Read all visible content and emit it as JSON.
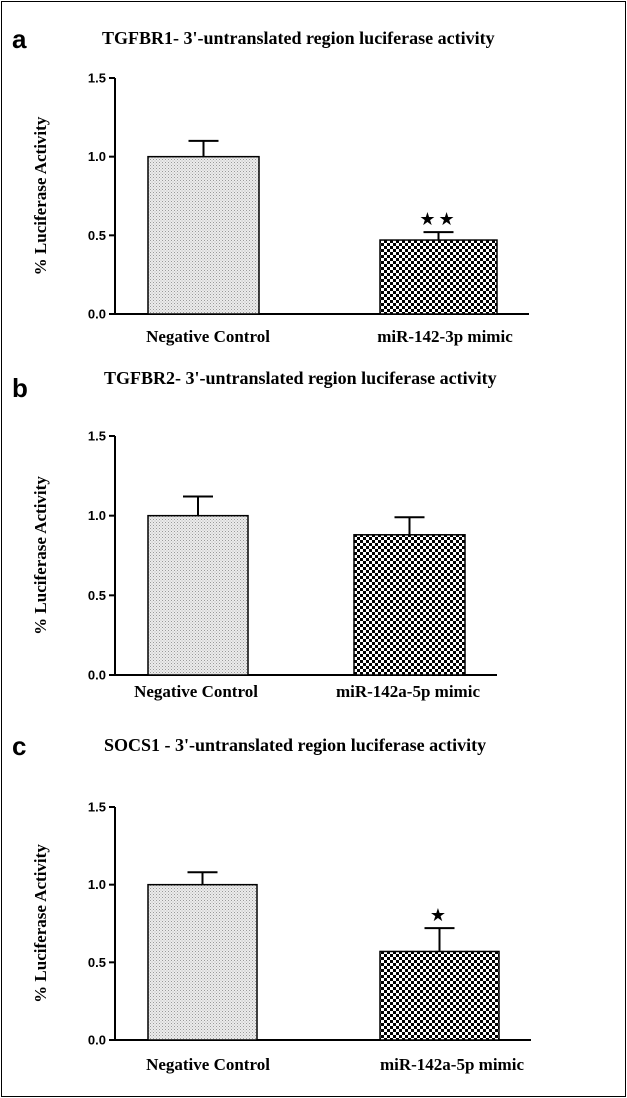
{
  "chart_data": [
    {
      "panel": "a",
      "type": "bar",
      "title": "TGFBR1- 3'-untranslated region luciferase activity",
      "xlabel": "",
      "ylabel": "% Luciferase Activity",
      "ylim": [
        0,
        1.5
      ],
      "yticks": [
        "0.0",
        "0.5",
        "1.0",
        "1.5"
      ],
      "grid": false,
      "categories": [
        "Negative Control",
        "miR-142-3p mimic"
      ],
      "values": [
        1.0,
        0.47
      ],
      "errors": [
        0.1,
        0.05
      ],
      "fills": [
        "dots",
        "checker"
      ],
      "annotations": [
        "",
        "★★"
      ]
    },
    {
      "panel": "b",
      "type": "bar",
      "title": "TGFBR2- 3'-untranslated region luciferase activity",
      "xlabel": "",
      "ylabel": "% Luciferase Activity",
      "ylim": [
        0,
        1.5
      ],
      "yticks": [
        "0.0",
        "0.5",
        "1.0",
        "1.5"
      ],
      "grid": false,
      "categories": [
        "Negative Control",
        "miR-142a-5p mimic"
      ],
      "values": [
        1.0,
        0.88
      ],
      "errors": [
        0.12,
        0.11
      ],
      "fills": [
        "dots",
        "checker"
      ],
      "annotations": [
        "",
        ""
      ]
    },
    {
      "panel": "c",
      "type": "bar",
      "title": "SOCS1 - 3'-untranslated region luciferase activity",
      "xlabel": "",
      "ylabel": "% Luciferase Activity",
      "ylim": [
        0,
        1.5
      ],
      "yticks": [
        "0.0",
        "0.5",
        "1.0",
        "1.5"
      ],
      "grid": false,
      "categories": [
        "Negative Control",
        "miR-142a-5p mimic"
      ],
      "values": [
        1.0,
        0.57
      ],
      "errors": [
        0.08,
        0.15
      ],
      "fills": [
        "dots",
        "checker"
      ],
      "annotations": [
        "",
        "★"
      ]
    }
  ],
  "colors": {
    "axis": "#000000",
    "bar_outline": "#000000",
    "dots_fill": "#d9d9d9",
    "checker_fill": "#000000",
    "background": "#ffffff"
  }
}
